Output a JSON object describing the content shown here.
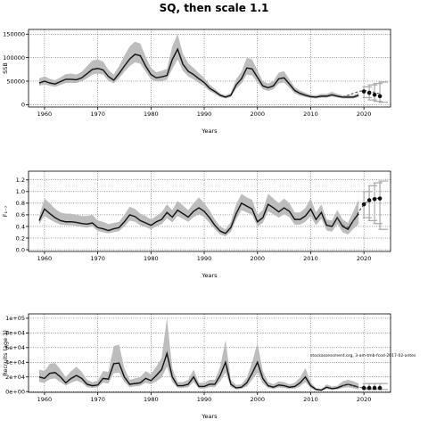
{
  "title": "SQ, then scale 1.1",
  "chart_data": [
    {
      "type": "line",
      "ylabel": "SSB",
      "xlabel": "Years",
      "xlim": [
        1957,
        2025
      ],
      "ylim": [
        -5000,
        160000
      ],
      "xticks": [
        1960,
        1970,
        1980,
        1990,
        2000,
        2010,
        2020
      ],
      "xtick_labels": [
        "1960",
        "1970",
        "1980",
        "1990",
        "2000",
        "2010",
        "2020"
      ],
      "yticks": [
        0,
        50000,
        100000,
        150000
      ],
      "ytick_labels": [
        "0",
        "50000",
        "100000",
        "150000"
      ],
      "grid": true,
      "x": [
        1959,
        1960,
        1961,
        1962,
        1963,
        1964,
        1965,
        1966,
        1967,
        1968,
        1969,
        1970,
        1971,
        1972,
        1973,
        1974,
        1975,
        1976,
        1977,
        1978,
        1979,
        1980,
        1981,
        1982,
        1983,
        1984,
        1985,
        1986,
        1987,
        1988,
        1989,
        1990,
        1991,
        1992,
        1993,
        1994,
        1995,
        1996,
        1997,
        1998,
        1999,
        2000,
        2001,
        2002,
        2003,
        2004,
        2005,
        2006,
        2007,
        2008,
        2009,
        2010,
        2011,
        2012,
        2013,
        2014,
        2015,
        2016,
        2017,
        2018,
        2019
      ],
      "median": [
        46000,
        50000,
        46000,
        44000,
        49000,
        54000,
        54000,
        53000,
        57000,
        66000,
        75000,
        77000,
        74000,
        60000,
        52000,
        66000,
        82000,
        97000,
        107000,
        104000,
        82000,
        64000,
        57000,
        59000,
        62000,
        96000,
        118000,
        86000,
        71000,
        64000,
        55000,
        47000,
        35000,
        28000,
        20000,
        16000,
        20000,
        42000,
        55000,
        78000,
        76000,
        58000,
        40000,
        36000,
        40000,
        55000,
        57000,
        44000,
        30000,
        24000,
        20000,
        17000,
        16000,
        18000,
        18000,
        21000,
        18000,
        16000,
        16000,
        16000,
        20000
      ],
      "lower": [
        40000,
        43000,
        40000,
        38000,
        42000,
        46000,
        46000,
        46000,
        50000,
        56000,
        64000,
        66000,
        64000,
        51000,
        45000,
        56000,
        70000,
        82000,
        90000,
        87000,
        70000,
        54000,
        49000,
        50000,
        53000,
        76000,
        96000,
        72000,
        60000,
        54000,
        46000,
        39000,
        29000,
        23000,
        16000,
        13000,
        16000,
        34000,
        45000,
        64000,
        62000,
        47000,
        33000,
        29000,
        33000,
        45000,
        47000,
        36000,
        24000,
        19000,
        16000,
        14000,
        13000,
        15000,
        15000,
        17000,
        15000,
        13000,
        13000,
        13000,
        16000
      ],
      "upper": [
        56000,
        60000,
        55000,
        52000,
        58000,
        65000,
        66000,
        64000,
        70000,
        82000,
        94000,
        96000,
        92000,
        74000,
        64000,
        82000,
        104000,
        124000,
        134000,
        130000,
        102000,
        78000,
        69000,
        72000,
        76000,
        124000,
        150000,
        108000,
        88000,
        78000,
        67000,
        57000,
        43000,
        34000,
        24000,
        20000,
        25000,
        54000,
        70000,
        100000,
        96000,
        73000,
        50000,
        45000,
        50000,
        68000,
        71000,
        54000,
        37000,
        30000,
        25000,
        21000,
        20000,
        23000,
        23000,
        27000,
        23000,
        20000,
        20000,
        20000,
        25000
      ],
      "dash_x": [
        2016,
        2017,
        2018,
        2019,
        2020,
        2021,
        2022,
        2023
      ],
      "dash_y": [
        16000,
        20000,
        24000,
        28000,
        30000,
        29000,
        26000,
        23000
      ],
      "proj_x": [
        2020,
        2021,
        2022,
        2023
      ],
      "proj_median": [
        28000,
        25000,
        21000,
        18000
      ],
      "proj_lower": [
        15000,
        10000,
        7000,
        5000
      ],
      "proj_upper": [
        38000,
        42000,
        45000,
        48000
      ]
    },
    {
      "type": "line",
      "ylabel": "F₁₋₇",
      "xlabel": "Years",
      "xlim": [
        1957,
        2025
      ],
      "ylim": [
        -0.03,
        1.35
      ],
      "xticks": [
        1960,
        1970,
        1980,
        1990,
        2000,
        2010,
        2020
      ],
      "xtick_labels": [
        "1960",
        "1970",
        "1980",
        "1990",
        "2000",
        "2010",
        "2020"
      ],
      "yticks": [
        0.0,
        0.2,
        0.4,
        0.6,
        0.8,
        1.0,
        1.2
      ],
      "ytick_labels": [
        "0.0",
        "0.2",
        "0.4",
        "0.6",
        "0.8",
        "1.0",
        "1.2"
      ],
      "grid": true,
      "x": [
        1959,
        1960,
        1961,
        1962,
        1963,
        1964,
        1965,
        1966,
        1967,
        1968,
        1969,
        1970,
        1971,
        1972,
        1973,
        1974,
        1975,
        1976,
        1977,
        1978,
        1979,
        1980,
        1981,
        1982,
        1983,
        1984,
        1985,
        1986,
        1987,
        1988,
        1989,
        1990,
        1991,
        1992,
        1993,
        1994,
        1995,
        1996,
        1997,
        1998,
        1999,
        2000,
        2001,
        2002,
        2003,
        2004,
        2005,
        2006,
        2007,
        2008,
        2009,
        2010,
        2011,
        2012,
        2013,
        2014,
        2015,
        2016,
        2017,
        2018,
        2019
      ],
      "median": [
        0.5,
        0.7,
        0.62,
        0.55,
        0.5,
        0.48,
        0.48,
        0.47,
        0.45,
        0.44,
        0.46,
        0.38,
        0.36,
        0.33,
        0.36,
        0.38,
        0.48,
        0.6,
        0.57,
        0.5,
        0.46,
        0.42,
        0.48,
        0.52,
        0.64,
        0.56,
        0.68,
        0.62,
        0.56,
        0.66,
        0.72,
        0.66,
        0.55,
        0.42,
        0.32,
        0.28,
        0.38,
        0.62,
        0.8,
        0.75,
        0.7,
        0.48,
        0.55,
        0.78,
        0.72,
        0.65,
        0.72,
        0.66,
        0.52,
        0.52,
        0.58,
        0.7,
        0.52,
        0.64,
        0.42,
        0.4,
        0.55,
        0.4,
        0.35,
        0.5,
        0.62
      ],
      "lower": [
        0.44,
        0.58,
        0.52,
        0.47,
        0.43,
        0.42,
        0.42,
        0.41,
        0.39,
        0.38,
        0.4,
        0.32,
        0.3,
        0.28,
        0.3,
        0.32,
        0.4,
        0.5,
        0.48,
        0.42,
        0.39,
        0.35,
        0.4,
        0.44,
        0.54,
        0.47,
        0.58,
        0.53,
        0.48,
        0.56,
        0.61,
        0.56,
        0.46,
        0.35,
        0.26,
        0.23,
        0.31,
        0.52,
        0.68,
        0.64,
        0.6,
        0.4,
        0.46,
        0.66,
        0.61,
        0.55,
        0.61,
        0.56,
        0.43,
        0.43,
        0.48,
        0.58,
        0.42,
        0.53,
        0.33,
        0.31,
        0.44,
        0.3,
        0.26,
        0.36,
        0.44
      ],
      "upper": [
        0.58,
        0.88,
        0.8,
        0.7,
        0.64,
        0.62,
        0.62,
        0.6,
        0.58,
        0.58,
        0.6,
        0.5,
        0.48,
        0.44,
        0.46,
        0.48,
        0.6,
        0.74,
        0.7,
        0.62,
        0.58,
        0.52,
        0.58,
        0.64,
        0.78,
        0.68,
        0.84,
        0.76,
        0.68,
        0.8,
        0.9,
        0.8,
        0.68,
        0.52,
        0.4,
        0.35,
        0.48,
        0.78,
        0.96,
        0.9,
        0.86,
        0.6,
        0.68,
        0.96,
        0.88,
        0.8,
        0.88,
        0.8,
        0.64,
        0.64,
        0.72,
        0.88,
        0.64,
        0.78,
        0.52,
        0.5,
        0.68,
        0.52,
        0.46,
        0.66,
        0.86
      ],
      "dash_x": [
        2015,
        2016,
        2017,
        2018,
        2019,
        2020,
        2021,
        2022,
        2023
      ],
      "dash_y": [
        0.55,
        0.42,
        0.38,
        0.5,
        0.65,
        0.78,
        0.86,
        0.88,
        0.89
      ],
      "proj_x": [
        2020,
        2021,
        2022,
        2023
      ],
      "proj_median": [
        0.78,
        0.85,
        0.87,
        0.88
      ],
      "proj_lower": [
        0.55,
        0.5,
        0.45,
        0.35
      ],
      "proj_upper": [
        1.0,
        1.1,
        1.15,
        1.18
      ]
    },
    {
      "type": "line",
      "ylabel": "Recruits (age 3)",
      "xlabel": "Years",
      "xlim": [
        1957,
        2025
      ],
      "ylim": [
        -1000,
        106000
      ],
      "xticks": [
        1960,
        1970,
        1980,
        1990,
        2000,
        2010,
        2020
      ],
      "xtick_labels": [
        "1960",
        "1970",
        "1980",
        "1990",
        "2000",
        "2010",
        "2020"
      ],
      "yticks": [
        0,
        20000,
        40000,
        60000,
        80000,
        100000
      ],
      "ytick_labels": [
        "0e+00",
        "2e+04",
        "4e+04",
        "6e+04",
        "8e+04",
        "1e+05"
      ],
      "grid": true,
      "annotation": "stockassessment.org, 3-am-tmb-fcod-2017-02-antes",
      "x": [
        1959,
        1960,
        1961,
        1962,
        1963,
        1964,
        1965,
        1966,
        1967,
        1968,
        1969,
        1970,
        1971,
        1972,
        1973,
        1974,
        1975,
        1976,
        1977,
        1978,
        1979,
        1980,
        1981,
        1982,
        1983,
        1984,
        1985,
        1986,
        1987,
        1988,
        1989,
        1990,
        1991,
        1992,
        1993,
        1994,
        1995,
        1996,
        1997,
        1998,
        1999,
        2000,
        2001,
        2002,
        2003,
        2004,
        2005,
        2006,
        2007,
        2008,
        2009,
        2010,
        2011,
        2012,
        2013,
        2014,
        2015,
        2016,
        2017,
        2018,
        2019
      ],
      "median": [
        20000,
        18000,
        25000,
        26000,
        20000,
        12000,
        18000,
        22000,
        18000,
        10000,
        8000,
        9000,
        18000,
        17000,
        38000,
        39000,
        20000,
        10000,
        11000,
        12000,
        18000,
        15000,
        22000,
        30000,
        52000,
        20000,
        8000,
        8000,
        10000,
        20000,
        7000,
        7000,
        10000,
        10000,
        22000,
        40000,
        10000,
        5000,
        6000,
        12000,
        25000,
        40000,
        18000,
        8000,
        6000,
        9000,
        8000,
        6000,
        7000,
        12000,
        20000,
        8000,
        3000,
        2000,
        6000,
        4000,
        5000,
        8000,
        10000,
        8000,
        6000
      ],
      "lower": [
        13000,
        12000,
        17000,
        18000,
        13000,
        8000,
        12000,
        15000,
        12000,
        6000,
        5000,
        6000,
        12000,
        11000,
        25000,
        26000,
        13000,
        6000,
        7000,
        8000,
        12000,
        10000,
        14000,
        19000,
        34000,
        13000,
        5000,
        5000,
        6000,
        13000,
        4000,
        4000,
        6000,
        6000,
        14000,
        26000,
        6000,
        3000,
        3500,
        7000,
        16000,
        26000,
        11000,
        5000,
        3500,
        5500,
        5000,
        3500,
        4000,
        7000,
        13000,
        5000,
        1500,
        1000,
        3500,
        2500,
        3000,
        5000,
        6000,
        4500,
        3000
      ],
      "upper": [
        30000,
        28000,
        38000,
        39000,
        30000,
        20000,
        28000,
        34000,
        27000,
        16000,
        13000,
        15000,
        28000,
        27000,
        62000,
        64000,
        32000,
        16000,
        18000,
        20000,
        28000,
        24000,
        34000,
        46000,
        100000,
        32000,
        13000,
        13000,
        16000,
        30000,
        12000,
        12000,
        16000,
        16000,
        34000,
        70000,
        16000,
        9000,
        10000,
        19000,
        40000,
        66000,
        28000,
        13000,
        10000,
        14000,
        13000,
        10000,
        12000,
        19000,
        32000,
        13000,
        5000,
        3500,
        10000,
        7000,
        8000,
        14000,
        16000,
        14000,
        11000
      ],
      "dash_x": [
        2016,
        2017,
        2018,
        2019,
        2020,
        2021,
        2022,
        2023
      ],
      "dash_y": [
        8000,
        10000,
        8000,
        6000,
        5000,
        5000,
        5000,
        5000
      ],
      "proj_x": [
        2020,
        2021,
        2022,
        2023
      ],
      "proj_median": [
        5000,
        5000,
        5000,
        5000
      ],
      "proj_lower": [
        3000,
        3000,
        3000,
        3000
      ],
      "proj_upper": [
        11000,
        11000,
        11000,
        11000
      ]
    }
  ]
}
